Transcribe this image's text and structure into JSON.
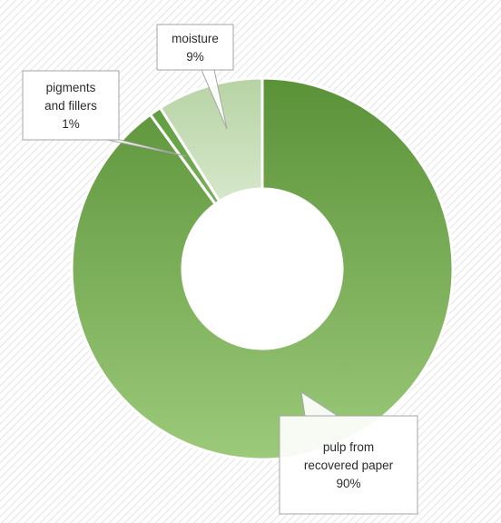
{
  "chart_data": {
    "type": "pie",
    "donut": true,
    "title": "",
    "slices": [
      {
        "label_lines": [
          "pulp from",
          "recovered paper"
        ],
        "value": 90,
        "value_label": "90%",
        "color": "#5f9a3e"
      },
      {
        "label_lines": [
          "pigments",
          "and fillers"
        ],
        "value": 1,
        "value_label": "1%",
        "color": "#6aa84f"
      },
      {
        "label_lines": [
          "moisture"
        ],
        "value": 9,
        "value_label": "9%",
        "color": "#c3d9b3"
      }
    ],
    "background": "diagonal-hatch",
    "legend": "none"
  }
}
